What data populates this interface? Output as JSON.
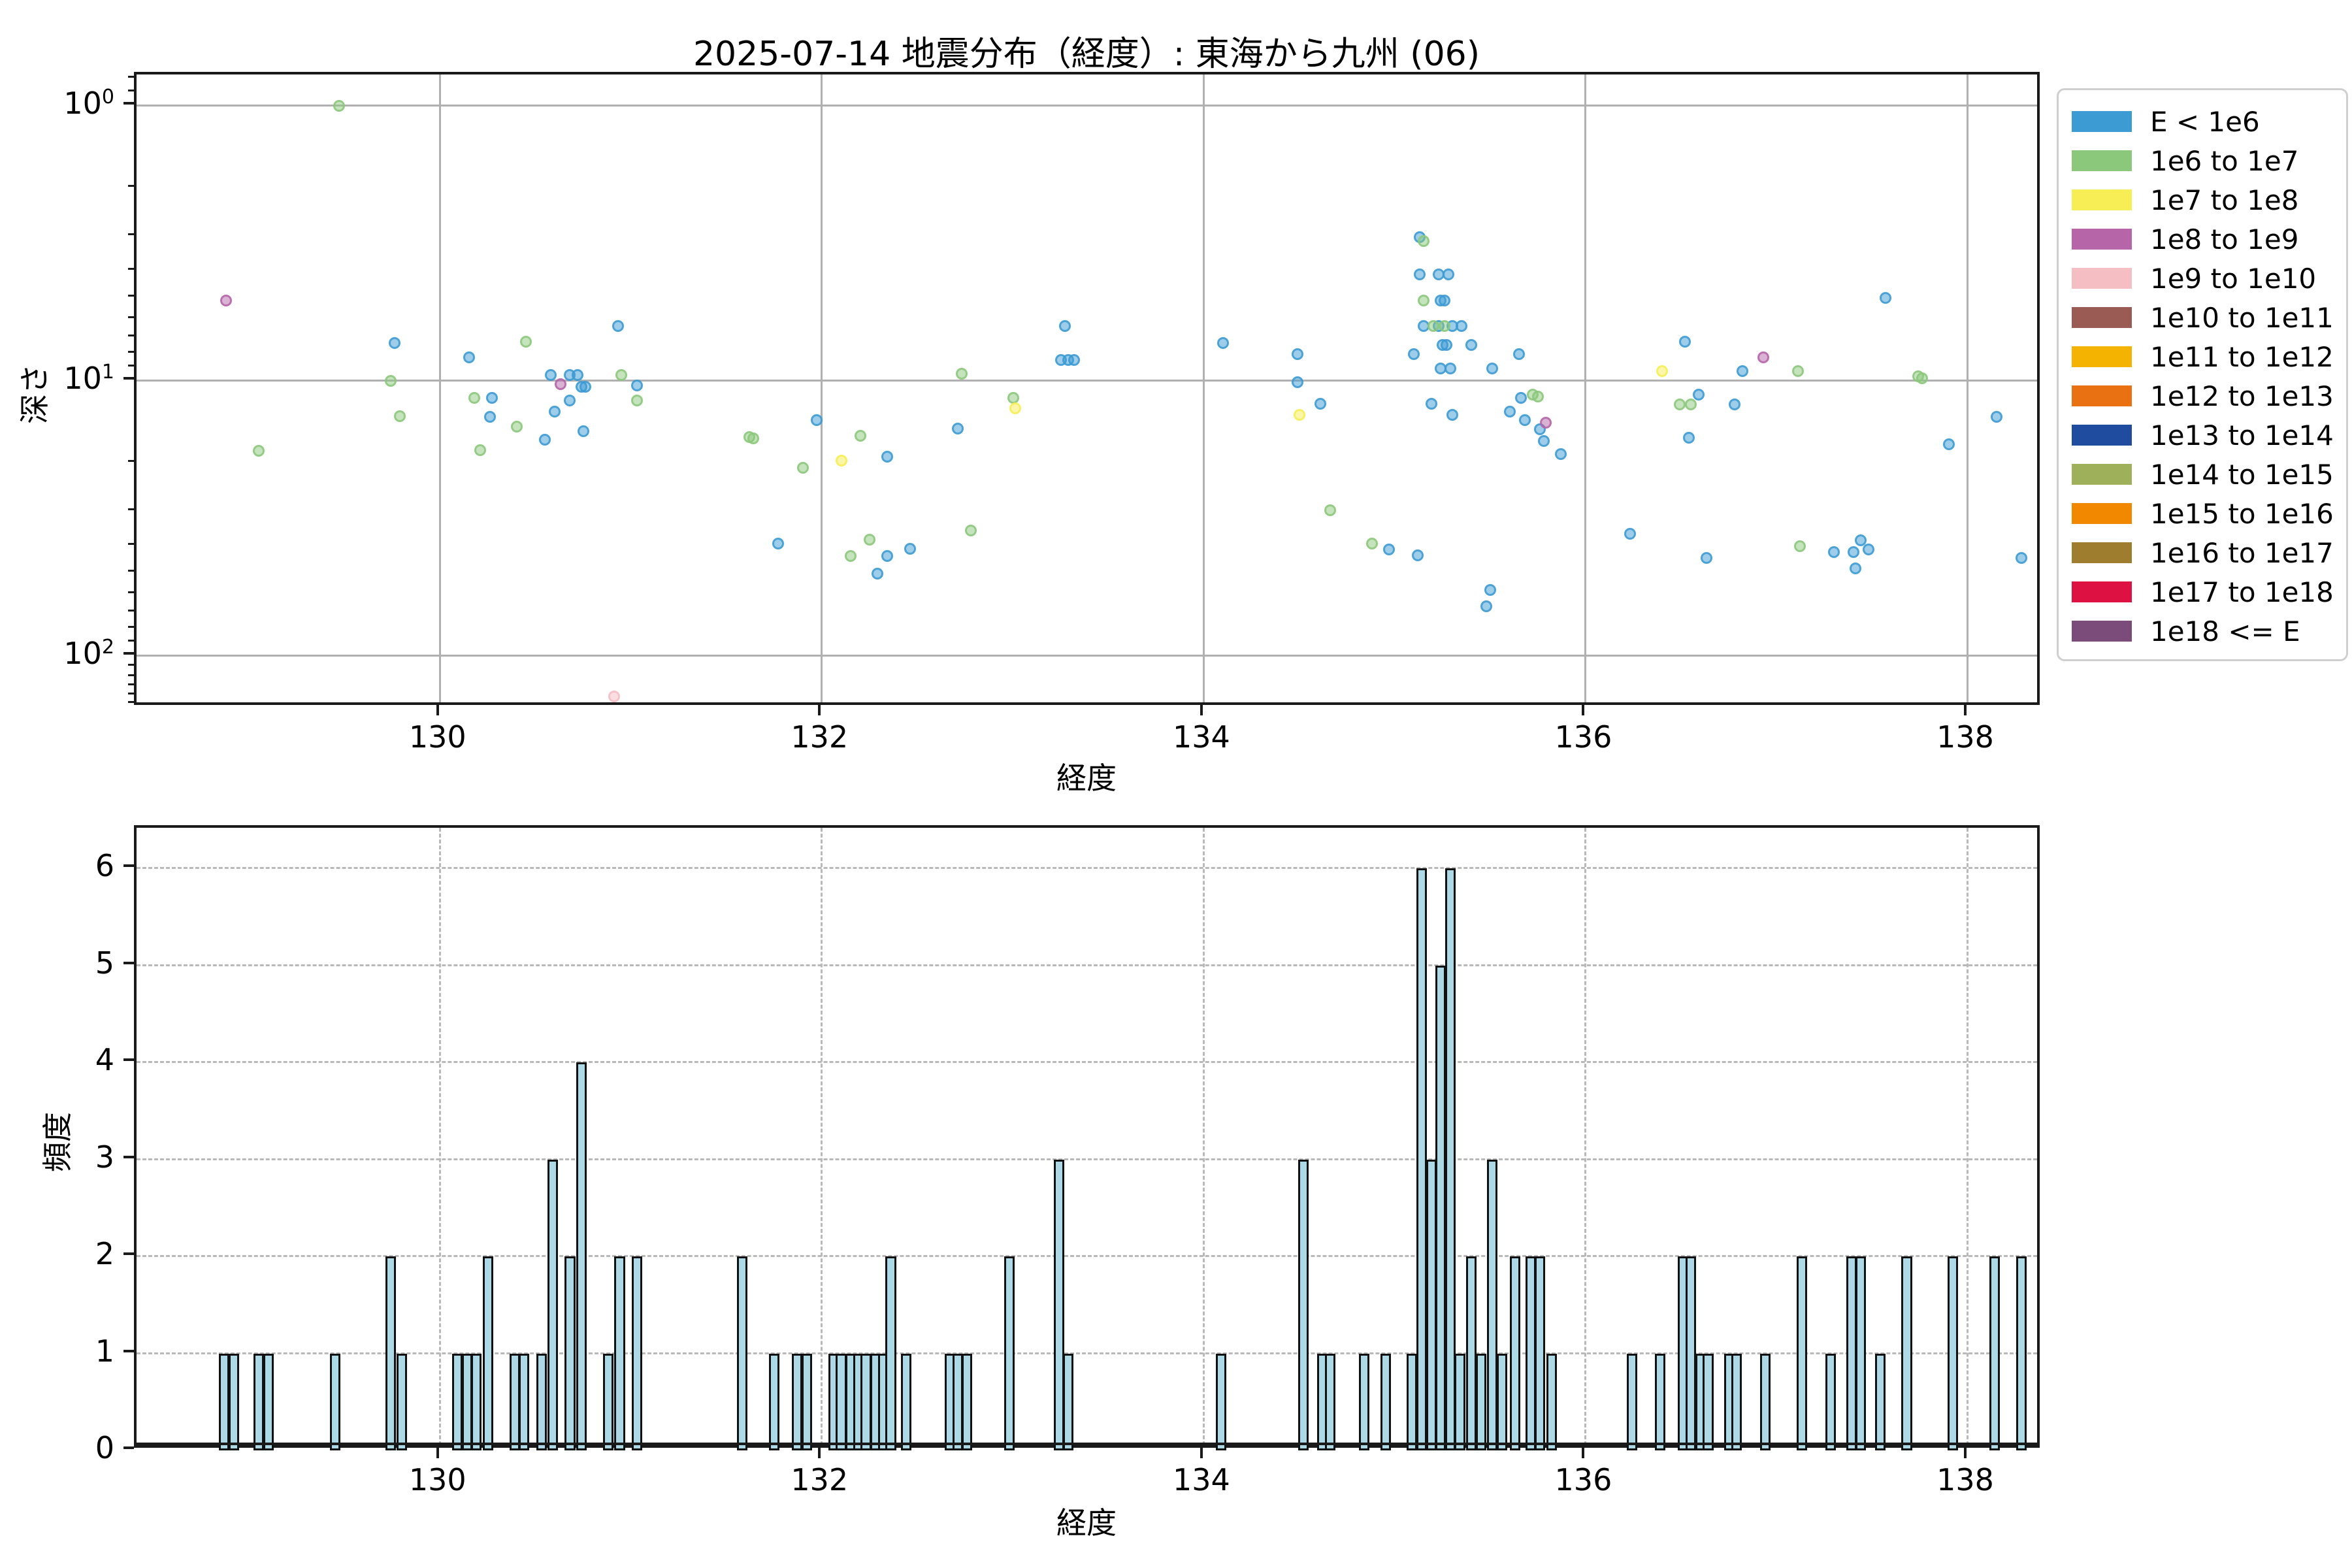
{
  "title": "2025-07-14 地震分布（経度）: 東海から九州 (06)",
  "legend": {
    "entries": [
      {
        "label": "E < 1e6",
        "color": "#3d9bd4"
      },
      {
        "label": "1e6 to 1e7",
        "color": "#8cc87c"
      },
      {
        "label": "1e7 to 1e8",
        "color": "#f7ee56"
      },
      {
        "label": "1e8 to 1e9",
        "color": "#b565a8"
      },
      {
        "label": "1e9 to 1e10",
        "color": "#f5bec3"
      },
      {
        "label": "1e10 to 1e11",
        "color": "#9a5b55"
      },
      {
        "label": "1e11 to 1e12",
        "color": "#f3b300"
      },
      {
        "label": "1e12 to 1e13",
        "color": "#ea7112"
      },
      {
        "label": "1e13 to 1e14",
        "color": "#1f4c9f"
      },
      {
        "label": "1e14 to 1e15",
        "color": "#9eb05a"
      },
      {
        "label": "1e15 to 1e16",
        "color": "#f18800"
      },
      {
        "label": "1e16 to 1e17",
        "color": "#9f7d2e"
      },
      {
        "label": "1e17 to 1e18",
        "color": "#dd1243"
      },
      {
        "label": "1e18 <= E",
        "color": "#7b4c79"
      }
    ]
  },
  "chart_data": [
    {
      "type": "scatter",
      "title": "2025-07-14 地震分布（経度）: 東海から九州 (06)",
      "xlabel": "経度",
      "ylabel": "深さ",
      "xlim": [
        128.41,
        138.39
      ],
      "y_axis": {
        "scale": "log10",
        "inverted": true,
        "top_value": 0.77,
        "bottom_value": 154
      },
      "xticks": [
        130,
        132,
        134,
        136,
        138
      ],
      "ytick_exponents": [
        0,
        1,
        2
      ],
      "grid": true,
      "legend_position": "upper right outside",
      "series": [
        {
          "name": "E < 1e6",
          "color": "#3d9bd4",
          "points": [
            [
              129.76,
              7.3
            ],
            [
              130.15,
              8.2
            ],
            [
              130.27,
              11.5
            ],
            [
              130.26,
              13.5
            ],
            [
              130.58,
              9.5
            ],
            [
              130.68,
              9.5
            ],
            [
              130.72,
              9.5
            ],
            [
              130.74,
              10.5
            ],
            [
              130.76,
              10.5
            ],
            [
              130.68,
              11.8
            ],
            [
              130.6,
              12.9
            ],
            [
              130.75,
              15.2
            ],
            [
              130.55,
              16.4
            ],
            [
              130.93,
              6.3
            ],
            [
              131.03,
              10.4
            ],
            [
              131.97,
              13.9
            ],
            [
              131.77,
              39
            ],
            [
              132.34,
              18.9
            ],
            [
              132.34,
              43.4
            ],
            [
              132.46,
              40.8
            ],
            [
              132.29,
              50.3
            ],
            [
              132.71,
              14.9
            ],
            [
              133.27,
              6.3
            ],
            [
              133.25,
              8.4
            ],
            [
              133.29,
              8.4
            ],
            [
              133.32,
              8.4
            ],
            [
              134.1,
              7.3
            ],
            [
              134.49,
              8.0
            ],
            [
              134.49,
              10.1
            ],
            [
              134.61,
              12.1
            ],
            [
              135.13,
              3.0
            ],
            [
              135.13,
              4.1
            ],
            [
              135.23,
              4.1
            ],
            [
              135.28,
              4.1
            ],
            [
              135.24,
              5.1
            ],
            [
              135.26,
              5.1
            ],
            [
              135.15,
              6.3
            ],
            [
              135.23,
              6.3
            ],
            [
              135.3,
              6.3
            ],
            [
              135.35,
              6.3
            ],
            [
              135.25,
              7.4
            ],
            [
              135.27,
              7.4
            ],
            [
              135.4,
              7.4
            ],
            [
              135.1,
              8.0
            ],
            [
              135.24,
              9.0
            ],
            [
              135.29,
              9.0
            ],
            [
              135.51,
              9.0
            ],
            [
              135.65,
              8.0
            ],
            [
              135.19,
              12.1
            ],
            [
              135.3,
              13.3
            ],
            [
              135.66,
              11.5
            ],
            [
              135.6,
              12.9
            ],
            [
              135.68,
              13.9
            ],
            [
              135.76,
              15.0
            ],
            [
              135.78,
              16.5
            ],
            [
              135.87,
              18.5
            ],
            [
              134.97,
              41
            ],
            [
              135.12,
              43
            ],
            [
              135.5,
              57.6
            ],
            [
              135.48,
              65.9
            ],
            [
              136.52,
              7.2
            ],
            [
              136.82,
              9.2
            ],
            [
              136.59,
              11.2
            ],
            [
              136.78,
              12.2
            ],
            [
              136.54,
              16.1
            ],
            [
              136.23,
              36
            ],
            [
              136.63,
              44
            ],
            [
              137.57,
              5.0
            ],
            [
              137.9,
              17
            ],
            [
              138.15,
              13.5
            ],
            [
              137.3,
              42
            ],
            [
              137.4,
              42
            ],
            [
              137.44,
              38
            ],
            [
              137.48,
              41
            ],
            [
              137.41,
              48
            ],
            [
              138.28,
              44
            ]
          ]
        },
        {
          "name": "1e6 to 1e7",
          "color": "#8cc87c",
          "points": [
            [
              129.47,
              1.0
            ],
            [
              129.74,
              10.0
            ],
            [
              129.79,
              13.4
            ],
            [
              129.05,
              18.0
            ],
            [
              130.18,
              11.5
            ],
            [
              130.4,
              14.7
            ],
            [
              130.21,
              17.9
            ],
            [
              130.45,
              7.2
            ],
            [
              130.95,
              9.5
            ],
            [
              131.03,
              11.8
            ],
            [
              131.62,
              16.0
            ],
            [
              131.64,
              16.2
            ],
            [
              131.9,
              20.7
            ],
            [
              132.2,
              15.8
            ],
            [
              132.25,
              37.7
            ],
            [
              132.15,
              43.4
            ],
            [
              132.73,
              9.4
            ],
            [
              133.0,
              11.5
            ],
            [
              132.78,
              35
            ],
            [
              134.66,
              29.6
            ],
            [
              135.15,
              3.1
            ],
            [
              135.15,
              5.1
            ],
            [
              135.2,
              6.3
            ],
            [
              135.26,
              6.3
            ],
            [
              135.72,
              11.2
            ],
            [
              135.75,
              11.4
            ],
            [
              134.88,
              39
            ],
            [
              136.49,
              12.2
            ],
            [
              136.55,
              12.2
            ],
            [
              137.11,
              9.2
            ],
            [
              137.74,
              9.6
            ],
            [
              137.76,
              9.8
            ],
            [
              137.12,
              40
            ]
          ]
        },
        {
          "name": "1e7 to 1e8",
          "color": "#f7ee56",
          "points": [
            [
              132.1,
              19.5
            ],
            [
              133.01,
              12.6
            ],
            [
              134.5,
              13.3
            ],
            [
              136.4,
              9.2
            ]
          ]
        },
        {
          "name": "1e8 to 1e9",
          "color": "#b565a8",
          "points": [
            [
              128.88,
              5.1
            ],
            [
              130.63,
              10.3
            ],
            [
              135.79,
              14.2
            ],
            [
              136.93,
              8.2
            ]
          ]
        },
        {
          "name": "1e9 to 1e10",
          "color": "#f5bec3",
          "points": [
            [
              130.91,
              140
            ]
          ]
        },
        {
          "name": "1e10 to 1e11",
          "color": "#9a5b55",
          "points": []
        },
        {
          "name": "1e11 to 1e12",
          "color": "#f3b300",
          "points": []
        },
        {
          "name": "1e12 to 1e13",
          "color": "#ea7112",
          "points": []
        },
        {
          "name": "1e13 to 1e14",
          "color": "#1f4c9f",
          "points": []
        },
        {
          "name": "1e14 to 1e15",
          "color": "#9eb05a",
          "points": []
        },
        {
          "name": "1e15 to 1e16",
          "color": "#f18800",
          "points": []
        },
        {
          "name": "1e16 to 1e17",
          "color": "#9f7d2e",
          "points": []
        },
        {
          "name": "1e17 to 1e18",
          "color": "#dd1243",
          "points": []
        },
        {
          "name": "1e18 <= E",
          "color": "#7b4c79",
          "points": []
        }
      ]
    },
    {
      "type": "bar",
      "xlabel": "経度",
      "ylabel": "頻度",
      "xlim": [
        128.41,
        138.39
      ],
      "ylim": [
        0,
        6.42
      ],
      "xticks": [
        130,
        132,
        134,
        136,
        138
      ],
      "yticks": [
        0,
        1,
        2,
        3,
        4,
        5,
        6
      ],
      "grid": "dashed",
      "bar_fill": "#ADD8E6",
      "bin_width_deg": 0.055,
      "bars": [
        [
          128.87,
          1
        ],
        [
          128.92,
          1
        ],
        [
          129.05,
          1
        ],
        [
          129.1,
          1
        ],
        [
          129.45,
          1
        ],
        [
          129.74,
          2
        ],
        [
          129.8,
          1
        ],
        [
          130.09,
          1
        ],
        [
          130.14,
          1
        ],
        [
          130.19,
          1
        ],
        [
          130.25,
          2
        ],
        [
          130.39,
          1
        ],
        [
          130.44,
          1
        ],
        [
          130.53,
          1
        ],
        [
          130.59,
          3
        ],
        [
          130.68,
          2
        ],
        [
          130.74,
          4
        ],
        [
          130.88,
          1
        ],
        [
          130.94,
          2
        ],
        [
          131.03,
          2
        ],
        [
          131.58,
          2
        ],
        [
          131.75,
          1
        ],
        [
          131.87,
          1
        ],
        [
          131.92,
          1
        ],
        [
          132.06,
          1
        ],
        [
          132.1,
          1
        ],
        [
          132.15,
          1
        ],
        [
          132.19,
          1
        ],
        [
          132.23,
          1
        ],
        [
          132.28,
          1
        ],
        [
          132.32,
          1
        ],
        [
          132.36,
          2
        ],
        [
          132.44,
          1
        ],
        [
          132.67,
          1
        ],
        [
          132.71,
          1
        ],
        [
          132.76,
          1
        ],
        [
          132.98,
          2
        ],
        [
          133.24,
          3
        ],
        [
          133.29,
          1
        ],
        [
          134.09,
          1
        ],
        [
          134.52,
          3
        ],
        [
          134.62,
          1
        ],
        [
          134.66,
          1
        ],
        [
          134.84,
          1
        ],
        [
          134.95,
          1
        ],
        [
          135.09,
          1
        ],
        [
          135.14,
          6
        ],
        [
          135.19,
          3
        ],
        [
          135.24,
          5
        ],
        [
          135.29,
          6
        ],
        [
          135.34,
          1
        ],
        [
          135.4,
          2
        ],
        [
          135.45,
          1
        ],
        [
          135.51,
          3
        ],
        [
          135.56,
          1
        ],
        [
          135.63,
          2
        ],
        [
          135.71,
          2
        ],
        [
          135.76,
          2
        ],
        [
          135.82,
          1
        ],
        [
          136.24,
          1
        ],
        [
          136.39,
          1
        ],
        [
          136.51,
          2
        ],
        [
          136.55,
          2
        ],
        [
          136.6,
          1
        ],
        [
          136.64,
          1
        ],
        [
          136.75,
          1
        ],
        [
          136.79,
          1
        ],
        [
          136.94,
          1
        ],
        [
          137.13,
          2
        ],
        [
          137.28,
          1
        ],
        [
          137.39,
          2
        ],
        [
          137.44,
          2
        ],
        [
          137.54,
          1
        ],
        [
          137.68,
          2
        ],
        [
          137.92,
          2
        ],
        [
          138.14,
          2
        ],
        [
          138.28,
          2
        ]
      ]
    }
  ]
}
